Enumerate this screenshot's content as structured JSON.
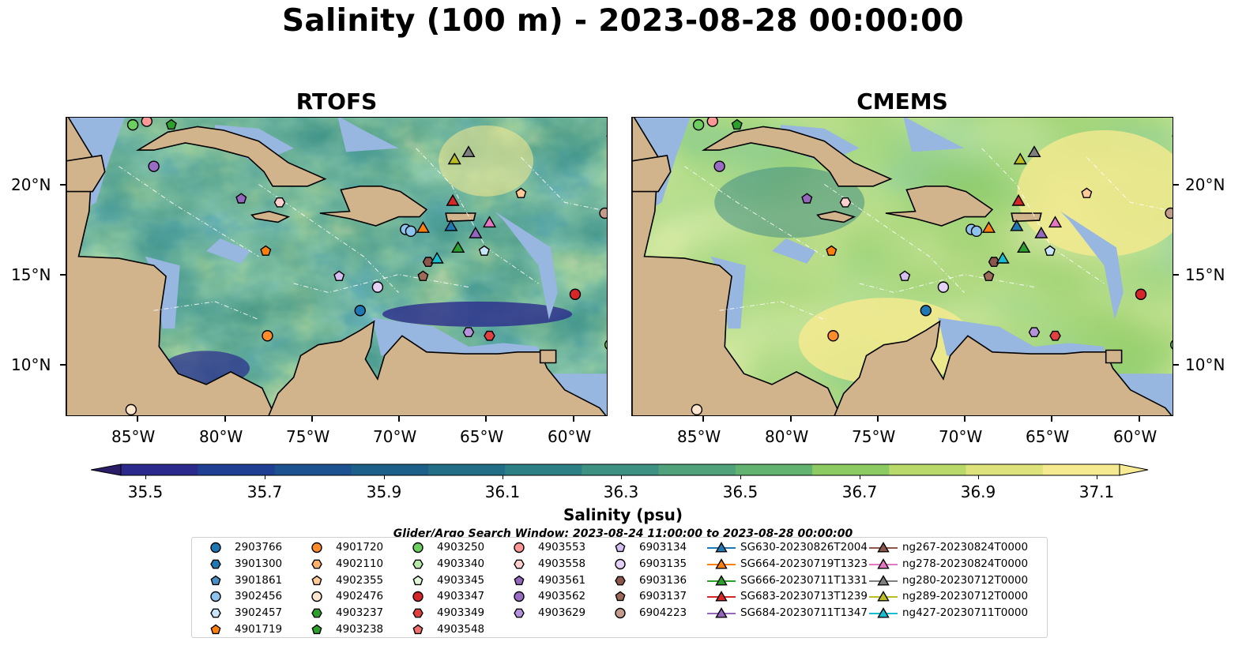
{
  "title": "Salinity (100 m) - 2023-08-28 00:00:00",
  "panels": [
    {
      "title": "RTOFS",
      "variant": "rtofs"
    },
    {
      "title": "CMEMS",
      "variant": "cmems"
    }
  ],
  "axes": {
    "x_ticks": [
      "85°W",
      "80°W",
      "75°W",
      "70°W",
      "65°W",
      "60°W"
    ],
    "y_ticks": [
      "20°N",
      "15°N",
      "10°N"
    ]
  },
  "colorbar": {
    "title": "Salinity (psu)",
    "ticks": [
      "35.5",
      "35.7",
      "35.9",
      "36.1",
      "36.3",
      "36.5",
      "36.7",
      "36.9",
      "37.1"
    ],
    "colors": [
      "#2a1c66",
      "#2b2a8c",
      "#1f3f93",
      "#1c5290",
      "#1b6088",
      "#226e86",
      "#2c7f85",
      "#3d9183",
      "#4fa27a",
      "#61b36f",
      "#8cca62",
      "#b9da6a",
      "#dde37a",
      "#f5ea8f",
      "#f8eb96"
    ],
    "extend": "both"
  },
  "search_window": "Glider/Argo Search Window: 2023-08-24 11:00:00 to 2023-08-28 00:00:00",
  "legend": {
    "columns": [
      [
        {
          "label": "2903766",
          "marker": "circle",
          "color": "#1f77b4"
        },
        {
          "label": "3901300",
          "marker": "hexagon",
          "color": "#1f77b4"
        },
        {
          "label": "3901861",
          "marker": "pentagon",
          "color": "#4a90c4"
        },
        {
          "label": "3902456",
          "marker": "circle",
          "color": "#8ec3ee"
        },
        {
          "label": "3902457",
          "marker": "hexagon",
          "color": "#c9e5f8"
        },
        {
          "label": "4901719",
          "marker": "pentagon",
          "color": "#ff7f0e"
        }
      ],
      [
        {
          "label": "4901720",
          "marker": "circle",
          "color": "#ff8c2a"
        },
        {
          "label": "4902110",
          "marker": "hexagon",
          "color": "#ffb06a"
        },
        {
          "label": "4902355",
          "marker": "pentagon",
          "color": "#ffc998"
        },
        {
          "label": "4902476",
          "marker": "circle",
          "color": "#ffe6cc"
        },
        {
          "label": "4903237",
          "marker": "hexagon",
          "color": "#2ca02c"
        },
        {
          "label": "4903238",
          "marker": "pentagon",
          "color": "#2ca02c"
        }
      ],
      [
        {
          "label": "4903250",
          "marker": "circle",
          "color": "#6ccf5f"
        },
        {
          "label": "4903340",
          "marker": "hexagon",
          "color": "#b7eaa8"
        },
        {
          "label": "4903345",
          "marker": "pentagon",
          "color": "#e2f7d9"
        },
        {
          "label": "4903347",
          "marker": "circle",
          "color": "#d62728"
        },
        {
          "label": "4903349",
          "marker": "hexagon",
          "color": "#e04040"
        },
        {
          "label": "4903548",
          "marker": "pentagon",
          "color": "#f07070"
        }
      ],
      [
        {
          "label": "4903553",
          "marker": "circle",
          "color": "#ff9896"
        },
        {
          "label": "4903558",
          "marker": "hexagon",
          "color": "#ffd0cc"
        },
        {
          "label": "4903561",
          "marker": "pentagon",
          "color": "#9467bd"
        },
        {
          "label": "4903562",
          "marker": "circle",
          "color": "#9a6dc4"
        },
        {
          "label": "4903629",
          "marker": "hexagon",
          "color": "#b592dc"
        }
      ],
      [
        {
          "label": "6903134",
          "marker": "pentagon",
          "color": "#d4bff0"
        },
        {
          "label": "6903135",
          "marker": "circle",
          "color": "#e4d2f6"
        },
        {
          "label": "6903136",
          "marker": "hexagon",
          "color": "#8c564b"
        },
        {
          "label": "6903137",
          "marker": "pentagon",
          "color": "#9c6a58"
        },
        {
          "label": "6904223",
          "marker": "circle",
          "color": "#c49c8c"
        }
      ],
      [
        {
          "label": "SG630-20230826T2004",
          "marker": "triangle",
          "color": "#1f77b4"
        },
        {
          "label": "SG664-20230719T1323",
          "marker": "triangle",
          "color": "#ff7f0e"
        },
        {
          "label": "SG666-20230711T1331",
          "marker": "triangle",
          "color": "#2ca02c"
        },
        {
          "label": "SG683-20230713T1239",
          "marker": "triangle",
          "color": "#d62728"
        },
        {
          "label": "SG684-20230711T1347",
          "marker": "triangle",
          "color": "#9467bd"
        }
      ],
      [
        {
          "label": "ng267-20230824T0000",
          "marker": "triangle",
          "color": "#8c564b"
        },
        {
          "label": "ng278-20230824T0000",
          "marker": "triangle",
          "color": "#e377c2"
        },
        {
          "label": "ng280-20230712T0000",
          "marker": "triangle",
          "color": "#7f7f7f"
        },
        {
          "label": "ng289-20230712T0000",
          "marker": "triangle",
          "color": "#bcbd22"
        },
        {
          "label": "ng427-20230711T0000",
          "marker": "triangle",
          "color": "#17becf"
        }
      ]
    ]
  },
  "colors": {
    "land": "#d2b48c",
    "shelf": "#97b6e0",
    "outline": "#000000"
  }
}
